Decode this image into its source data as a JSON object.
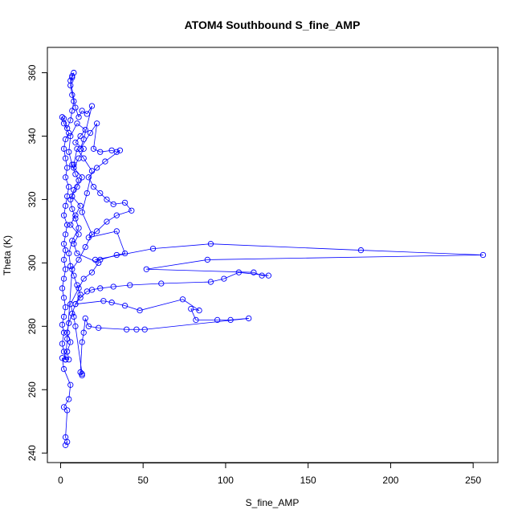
{
  "chart_data": {
    "type": "scatter",
    "title": "ATOM4 Southbound S_fine_AMP",
    "xlabel": "S_fine_AMP",
    "ylabel": "Theta (K)",
    "xlim": [
      -8,
      265
    ],
    "ylim": [
      237,
      368
    ],
    "x_ticks": [
      "0",
      "50",
      "100",
      "150",
      "200",
      "250"
    ],
    "y_ticks": [
      "240",
      "260",
      "280",
      "300",
      "320",
      "340",
      "360"
    ],
    "grid": false,
    "legend": "none",
    "series_color": "#0000ff",
    "marker": "open-circle",
    "connected": true,
    "series": [
      {
        "points": [
          [
            3,
            242.5
          ],
          [
            4,
            243.5
          ],
          [
            3,
            245
          ],
          [
            4,
            253.5
          ],
          [
            2,
            254.5
          ],
          [
            5,
            257
          ],
          [
            6,
            261.5
          ],
          [
            2,
            266.5
          ],
          [
            1,
            270
          ],
          [
            3,
            269.5
          ],
          [
            2,
            272
          ],
          [
            1,
            274.5
          ],
          [
            2,
            278
          ],
          [
            1,
            280.5
          ],
          [
            2,
            283
          ],
          [
            3,
            286
          ],
          [
            2,
            289
          ],
          [
            1,
            292
          ],
          [
            2,
            295
          ],
          [
            3,
            298
          ],
          [
            2,
            301
          ],
          [
            3,
            304
          ],
          [
            2,
            306
          ],
          [
            3,
            309
          ],
          [
            4,
            312
          ],
          [
            2,
            315
          ],
          [
            3,
            318
          ],
          [
            4,
            321
          ],
          [
            5,
            324
          ],
          [
            3,
            327
          ],
          [
            4,
            330
          ],
          [
            3,
            333
          ],
          [
            2,
            336
          ],
          [
            3,
            339
          ],
          [
            5,
            341
          ],
          [
            2,
            344
          ],
          [
            1,
            346
          ],
          [
            2,
            345.5
          ],
          [
            4,
            342.5
          ],
          [
            6,
            345
          ],
          [
            7,
            348
          ],
          [
            8,
            351
          ],
          [
            7,
            353
          ],
          [
            6,
            356
          ],
          [
            7,
            358.5
          ],
          [
            8,
            360
          ],
          [
            7,
            359
          ],
          [
            6,
            357.5
          ],
          [
            9,
            349
          ],
          [
            11,
            346
          ],
          [
            13,
            348
          ],
          [
            16,
            347
          ],
          [
            19,
            349.5
          ],
          [
            14,
            339
          ],
          [
            12,
            336
          ],
          [
            18,
            341
          ],
          [
            22,
            344
          ],
          [
            20,
            336
          ],
          [
            24,
            335
          ],
          [
            31,
            335.5
          ],
          [
            34,
            335
          ],
          [
            36,
            335.5
          ],
          [
            27,
            332
          ],
          [
            22,
            330
          ],
          [
            17,
            327
          ],
          [
            20,
            324
          ],
          [
            24,
            322
          ],
          [
            28,
            320
          ],
          [
            32,
            318.5
          ],
          [
            39,
            319
          ],
          [
            43,
            316.5
          ],
          [
            34,
            315
          ],
          [
            28,
            313
          ],
          [
            22,
            310
          ],
          [
            17,
            308
          ],
          [
            34,
            310
          ],
          [
            39,
            303
          ],
          [
            34,
            302.5
          ],
          [
            24,
            301
          ],
          [
            21,
            301
          ],
          [
            56,
            304.5
          ],
          [
            91,
            306
          ],
          [
            182,
            304
          ],
          [
            256,
            302.5
          ],
          [
            89,
            301
          ],
          [
            52,
            298
          ],
          [
            117,
            297
          ],
          [
            122,
            296
          ],
          [
            126,
            296
          ],
          [
            108,
            297
          ],
          [
            99,
            295
          ],
          [
            91,
            294
          ],
          [
            61,
            293.5
          ],
          [
            42,
            293
          ],
          [
            32,
            292.5
          ],
          [
            24,
            292
          ],
          [
            19,
            291.5
          ],
          [
            16,
            291
          ],
          [
            12,
            289
          ],
          [
            9,
            287
          ],
          [
            26,
            288
          ],
          [
            31,
            287.5
          ],
          [
            39,
            286.5
          ],
          [
            48,
            285
          ],
          [
            74,
            288.5
          ],
          [
            84,
            285
          ],
          [
            79,
            285.5
          ],
          [
            82,
            282
          ],
          [
            95,
            282
          ],
          [
            103,
            282
          ],
          [
            114,
            282.5
          ],
          [
            51,
            279
          ],
          [
            46,
            279
          ],
          [
            40,
            279
          ],
          [
            23,
            279.5
          ],
          [
            17,
            280
          ],
          [
            15,
            282.5
          ],
          [
            14,
            278
          ],
          [
            13,
            275
          ],
          [
            12,
            265.5
          ],
          [
            13,
            264.5
          ],
          [
            13,
            265
          ],
          [
            9,
            280
          ],
          [
            8,
            283
          ],
          [
            6,
            287
          ],
          [
            11,
            292
          ],
          [
            14,
            295
          ],
          [
            19,
            297
          ],
          [
            23,
            300
          ],
          [
            10,
            303
          ],
          [
            8,
            306
          ],
          [
            11,
            309
          ],
          [
            6,
            312
          ],
          [
            9,
            315
          ],
          [
            12,
            318
          ],
          [
            7,
            321
          ],
          [
            10,
            324
          ],
          [
            13,
            327
          ],
          [
            8,
            330
          ],
          [
            11,
            333
          ],
          [
            14,
            336
          ],
          [
            9,
            338
          ],
          [
            12,
            340
          ],
          [
            15,
            342
          ],
          [
            10,
            344
          ],
          [
            6,
            340
          ],
          [
            5,
            335
          ],
          [
            7,
            331
          ],
          [
            9,
            328
          ],
          [
            11,
            326
          ],
          [
            8,
            323
          ],
          [
            6,
            320
          ],
          [
            7,
            317
          ],
          [
            9,
            314
          ],
          [
            11,
            311
          ],
          [
            7,
            307
          ],
          [
            5,
            303
          ],
          [
            6,
            299
          ],
          [
            8,
            296
          ],
          [
            10,
            293
          ],
          [
            12,
            290
          ],
          [
            9,
            287
          ],
          [
            7,
            284
          ],
          [
            5,
            281
          ],
          [
            4,
            278
          ],
          [
            6,
            275
          ],
          [
            4,
            272
          ],
          [
            5,
            269.5
          ],
          [
            3,
            269.5
          ],
          [
            4,
            276
          ],
          [
            7,
            298
          ],
          [
            11,
            301
          ],
          [
            15,
            305
          ],
          [
            19,
            309
          ],
          [
            13,
            316
          ],
          [
            16,
            322
          ],
          [
            19,
            329
          ],
          [
            14,
            333
          ],
          [
            10,
            336
          ],
          [
            8,
            331
          ]
        ]
      }
    ]
  }
}
